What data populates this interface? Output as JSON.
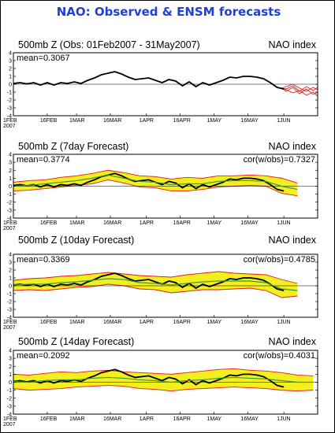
{
  "title": "NAO: Observed & ENSM forecasts",
  "colors": {
    "title": "#1f3fd8",
    "observed": "#000000",
    "ensemble_band": "#f2ee1f",
    "ensemble_members": "#e21a1a",
    "ensemble_mean": "#3a9a3a"
  },
  "chart_data": [
    {
      "type": "line",
      "title": "500mb Z (Obs: 01Feb2007 - 31May2007)",
      "index_label": "NAO index",
      "mean_label": "mean=0.3067",
      "cor_label": "",
      "ylim": [
        -4,
        4
      ],
      "yticks": [
        4,
        3,
        2,
        1,
        0,
        -1,
        -2,
        -3,
        -4
      ],
      "xticks": [
        "1FEB\n2007",
        "16FEB",
        "1MAR",
        "16MAR",
        "1APR",
        "16APR",
        "1MAY",
        "16MAY",
        "1JUN"
      ],
      "xtick_days": [
        0,
        15,
        28,
        43,
        59,
        74,
        89,
        104,
        120
      ],
      "xlim_days": [
        0,
        135
      ],
      "grid": false,
      "series": [
        {
          "name": "",
          "x": [
            0,
            3,
            6,
            9,
            12,
            15,
            18,
            21,
            24,
            27,
            30,
            33,
            36,
            39,
            42,
            45,
            48,
            51,
            54,
            57,
            60,
            63,
            66,
            69,
            72,
            75,
            78,
            81,
            84,
            87,
            90,
            93,
            96,
            99,
            102,
            105,
            108,
            111,
            114,
            117,
            120
          ],
          "y": [
            0.1,
            0.2,
            0.05,
            0.2,
            -0.1,
            0.2,
            -0.1,
            0.2,
            0.1,
            0.3,
            0.1,
            0.5,
            0.8,
            1.2,
            1.4,
            1.6,
            1.3,
            0.9,
            0.6,
            0.7,
            0.8,
            0.5,
            0.2,
            0.6,
            0.4,
            -0.2,
            0.3,
            -0.3,
            0.2,
            -0.1,
            0.2,
            0.5,
            0.9,
            0.8,
            1.0,
            1.0,
            0.9,
            0.7,
            0.2,
            -0.4,
            -0.6
          ]
        }
      ],
      "members": [
        {
          "x": [
            119,
            121,
            124,
            127,
            130,
            133,
            135
          ],
          "y": [
            -0.5,
            -0.6,
            -0.2,
            -0.9,
            -0.3,
            -0.8,
            -0.4
          ]
        },
        {
          "x": [
            119,
            121,
            124,
            127,
            130,
            133,
            135
          ],
          "y": [
            -0.5,
            -0.9,
            -0.4,
            -1.2,
            -0.6,
            -1.3,
            -1.0
          ]
        },
        {
          "x": [
            119,
            121,
            124,
            127,
            130,
            133,
            135
          ],
          "y": [
            -0.5,
            -0.3,
            0.0,
            -0.5,
            -0.9,
            -0.4,
            -0.7
          ]
        },
        {
          "x": [
            119,
            121,
            124,
            127,
            130,
            133,
            135
          ],
          "y": [
            -0.5,
            -0.7,
            -1.1,
            -0.8,
            -1.4,
            -1.0,
            -1.5
          ]
        }
      ]
    },
    {
      "type": "line",
      "title": "500mb Z (7day Forecast)",
      "index_label": "NAO index",
      "mean_label": "mean=0.3774",
      "cor_label": "cor(w/obs)=0.7327",
      "ylim": [
        -4,
        4
      ],
      "yticks": [
        4,
        3,
        2,
        1,
        0,
        -1,
        -2,
        -3,
        -4
      ],
      "xticks": [
        "1FEB\n2007",
        "16FEB",
        "1MAR",
        "16MAR",
        "1APR",
        "16APR",
        "1MAY",
        "16MAY",
        "1JUN"
      ],
      "xtick_days": [
        0,
        15,
        28,
        43,
        59,
        74,
        89,
        104,
        120
      ],
      "xlim_days": [
        0,
        135
      ],
      "grid": false,
      "band": {
        "x": [
          0,
          7,
          14,
          21,
          28,
          35,
          42,
          49,
          56,
          63,
          70,
          77,
          84,
          91,
          98,
          105,
          112,
          119,
          126
        ],
        "upper": [
          0.5,
          0.7,
          0.8,
          1.1,
          1.3,
          1.6,
          2.0,
          1.7,
          1.3,
          1.2,
          0.9,
          1.1,
          1.0,
          1.3,
          1.3,
          1.4,
          1.3,
          1.0,
          0.4
        ],
        "lower": [
          -0.6,
          -0.5,
          -0.3,
          -0.1,
          0.1,
          0.3,
          0.8,
          0.4,
          -0.1,
          -0.2,
          -0.6,
          -0.6,
          -0.4,
          -0.1,
          0.0,
          0.1,
          0.0,
          -0.9,
          -1.2
        ]
      },
      "series": [
        {
          "name": "",
          "x": [
            0,
            3,
            6,
            9,
            12,
            15,
            18,
            21,
            24,
            27,
            30,
            33,
            36,
            39,
            42,
            45,
            48,
            51,
            54,
            57,
            60,
            63,
            66,
            69,
            72,
            75,
            78,
            81,
            84,
            87,
            90,
            93,
            96,
            99,
            102,
            105,
            108,
            111,
            114,
            117,
            120
          ],
          "y": [
            0.1,
            0.2,
            0.05,
            0.2,
            -0.1,
            0.2,
            -0.1,
            0.2,
            0.1,
            0.3,
            0.1,
            0.5,
            0.8,
            1.2,
            1.4,
            1.6,
            1.3,
            0.9,
            0.6,
            0.7,
            0.8,
            0.5,
            0.2,
            0.6,
            0.4,
            -0.2,
            0.3,
            -0.3,
            0.2,
            -0.1,
            0.2,
            0.5,
            0.9,
            0.8,
            1.0,
            1.0,
            0.9,
            0.7,
            0.2,
            -0.4,
            -0.6
          ]
        },
        {
          "name": "",
          "x": [
            0,
            7,
            14,
            21,
            28,
            35,
            42,
            49,
            56,
            63,
            70,
            77,
            84,
            91,
            98,
            105,
            112,
            119,
            126
          ],
          "y": [
            0.0,
            0.1,
            0.3,
            0.5,
            0.7,
            1.0,
            1.4,
            1.0,
            0.6,
            0.5,
            0.2,
            0.3,
            0.3,
            0.6,
            0.7,
            0.7,
            0.6,
            0.0,
            -0.4
          ]
        }
      ]
    },
    {
      "type": "line",
      "title": "500mb Z (10day Forecast)",
      "index_label": "NAO index",
      "mean_label": "mean=0.3369",
      "cor_label": "cor(w/obs)=0.4785",
      "ylim": [
        -4,
        4
      ],
      "yticks": [
        4,
        3,
        2,
        1,
        0,
        -1,
        -2,
        -3,
        -4
      ],
      "xticks": [
        "1FEB\n2007",
        "16FEB",
        "1MAR",
        "16MAR",
        "1APR",
        "16APR",
        "1MAY",
        "16MAY",
        "1JUN"
      ],
      "xtick_days": [
        0,
        15,
        28,
        43,
        59,
        74,
        89,
        104,
        120
      ],
      "xlim_days": [
        0,
        135
      ],
      "grid": false,
      "band": {
        "x": [
          0,
          7,
          14,
          21,
          28,
          35,
          42,
          49,
          56,
          63,
          70,
          77,
          84,
          91,
          98,
          105,
          112,
          119,
          126
        ],
        "upper": [
          0.7,
          0.9,
          1.0,
          1.2,
          1.3,
          1.5,
          1.7,
          1.5,
          1.3,
          1.2,
          1.1,
          1.4,
          1.6,
          1.8,
          1.6,
          1.5,
          1.4,
          0.8,
          0.3
        ],
        "lower": [
          -0.6,
          -0.5,
          -0.6,
          -0.4,
          -0.2,
          -0.1,
          0.2,
          0.0,
          -0.4,
          -0.5,
          -0.9,
          -0.7,
          -0.5,
          -0.5,
          -0.4,
          -0.3,
          -0.6,
          -1.5,
          -1.3
        ]
      },
      "series": [
        {
          "name": "",
          "x": [
            0,
            3,
            6,
            9,
            12,
            15,
            18,
            21,
            24,
            27,
            30,
            33,
            36,
            39,
            42,
            45,
            48,
            51,
            54,
            57,
            60,
            63,
            66,
            69,
            72,
            75,
            78,
            81,
            84,
            87,
            90,
            93,
            96,
            99,
            102,
            105,
            108,
            111,
            114,
            117,
            120
          ],
          "y": [
            0.1,
            0.2,
            0.05,
            0.2,
            -0.1,
            0.2,
            -0.1,
            0.2,
            0.1,
            0.3,
            0.1,
            0.5,
            0.8,
            1.2,
            1.4,
            1.6,
            1.3,
            0.9,
            0.6,
            0.7,
            0.8,
            0.5,
            0.2,
            0.6,
            0.4,
            -0.2,
            0.3,
            -0.3,
            0.2,
            -0.1,
            0.2,
            0.5,
            0.9,
            0.8,
            1.0,
            1.0,
            0.9,
            0.7,
            0.2,
            -0.4,
            -0.6
          ]
        },
        {
          "name": "",
          "x": [
            0,
            7,
            14,
            21,
            28,
            35,
            42,
            49,
            56,
            63,
            70,
            77,
            84,
            91,
            98,
            105,
            112,
            119,
            126
          ],
          "y": [
            0.1,
            0.2,
            0.2,
            0.4,
            0.5,
            0.7,
            0.9,
            0.8,
            0.4,
            0.3,
            0.1,
            0.3,
            0.5,
            0.6,
            0.6,
            0.6,
            0.4,
            -0.4,
            -0.6
          ]
        }
      ]
    },
    {
      "type": "line",
      "title": "500mb Z (14day Forecast)",
      "index_label": "NAO index",
      "mean_label": "mean=0.2092",
      "cor_label": "cor(w/obs)=0.4031",
      "ylim": [
        -4,
        4
      ],
      "yticks": [
        4,
        3,
        2,
        1,
        0,
        -1,
        -2,
        -3,
        -4
      ],
      "xticks": [
        "1FEB\n2007",
        "16FEB",
        "1MAR",
        "16MAR",
        "1APR",
        "16APR",
        "1MAY",
        "16MAY",
        "1JUN"
      ],
      "xtick_days": [
        0,
        15,
        28,
        43,
        59,
        74,
        89,
        104,
        120
      ],
      "xlim_days": [
        0,
        135
      ],
      "grid": false,
      "band": {
        "x": [
          0,
          7,
          14,
          21,
          28,
          35,
          42,
          49,
          56,
          63,
          70,
          77,
          84,
          91,
          98,
          105,
          112,
          119,
          126,
          133
        ],
        "upper": [
          1.0,
          0.9,
          1.1,
          1.3,
          1.2,
          1.4,
          1.5,
          1.3,
          1.2,
          1.1,
          1.0,
          1.2,
          1.4,
          1.6,
          1.7,
          1.5,
          1.4,
          1.2,
          0.9,
          0.8
        ],
        "lower": [
          -0.8,
          -1.0,
          -0.9,
          -0.8,
          -0.6,
          -0.5,
          -0.4,
          -0.5,
          -0.8,
          -0.9,
          -1.1,
          -0.9,
          -0.8,
          -0.7,
          -0.6,
          -0.7,
          -0.8,
          -1.0,
          -1.1,
          -1.0
        ]
      },
      "series": [
        {
          "name": "",
          "x": [
            0,
            3,
            6,
            9,
            12,
            15,
            18,
            21,
            24,
            27,
            30,
            33,
            36,
            39,
            42,
            45,
            48,
            51,
            54,
            57,
            60,
            63,
            66,
            69,
            72,
            75,
            78,
            81,
            84,
            87,
            90,
            93,
            96,
            99,
            102,
            105,
            108,
            111,
            114,
            117,
            120
          ],
          "y": [
            0.1,
            0.2,
            0.05,
            0.2,
            -0.1,
            0.2,
            -0.1,
            0.2,
            0.1,
            0.3,
            0.1,
            0.5,
            0.8,
            1.2,
            1.4,
            1.6,
            1.3,
            0.9,
            0.6,
            0.7,
            0.8,
            0.5,
            0.2,
            0.6,
            0.4,
            -0.2,
            0.3,
            -0.3,
            0.2,
            -0.1,
            0.2,
            0.5,
            0.9,
            0.8,
            1.0,
            1.0,
            0.9,
            0.7,
            0.2,
            -0.4,
            -0.6
          ]
        },
        {
          "name": "",
          "x": [
            0,
            7,
            14,
            21,
            28,
            35,
            42,
            49,
            56,
            63,
            70,
            77,
            84,
            91,
            98,
            105,
            112,
            119,
            126,
            133
          ],
          "y": [
            0.1,
            0.0,
            0.2,
            0.3,
            0.3,
            0.5,
            0.6,
            0.5,
            0.3,
            0.2,
            0.0,
            0.2,
            0.3,
            0.5,
            0.6,
            0.5,
            0.4,
            0.2,
            0.0,
            0.0
          ]
        }
      ]
    }
  ]
}
